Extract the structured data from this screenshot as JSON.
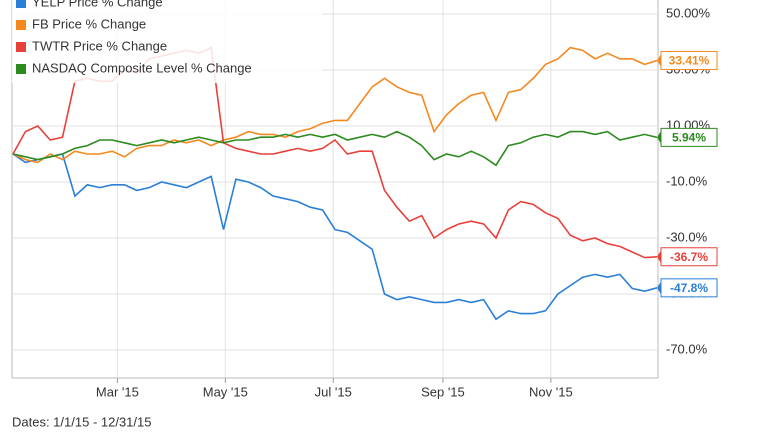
{
  "chart_data": {
    "type": "line",
    "footer": "Dates: 1/1/15 - 12/31/15",
    "x": [
      0,
      7,
      14,
      21,
      28,
      35,
      42,
      49,
      56,
      63,
      70,
      77,
      84,
      91,
      98,
      105,
      112,
      119,
      126,
      133,
      140,
      147,
      154,
      161,
      168,
      175,
      182,
      189,
      196,
      203,
      210,
      217,
      224,
      231,
      238,
      245,
      252,
      259,
      266,
      273,
      280,
      287,
      294,
      301,
      308,
      315,
      322,
      329,
      336,
      343,
      350,
      357,
      364
    ],
    "xlim": [
      0,
      364
    ],
    "xticks": [
      {
        "value": 59,
        "label": "Mar '15"
      },
      {
        "value": 120,
        "label": "May '15"
      },
      {
        "value": 181,
        "label": "Jul '15"
      },
      {
        "value": 243,
        "label": "Sep '15"
      },
      {
        "value": 304,
        "label": "Nov '15"
      }
    ],
    "ylim": [
      -80,
      55
    ],
    "yticks": [
      {
        "value": 50,
        "label": "50.00%"
      },
      {
        "value": 30,
        "label": "30.00%"
      },
      {
        "value": 10,
        "label": "10.00%"
      },
      {
        "value": -10,
        "label": "-10.0%"
      },
      {
        "value": -30,
        "label": "-30.0%"
      },
      {
        "value": -50,
        "label": "-50.0%"
      },
      {
        "value": -70,
        "label": "-70.0%"
      }
    ],
    "grid": true,
    "legend": "top-left",
    "series": [
      {
        "name": "YELP Price % Change",
        "color": "#2a7fd6",
        "values": [
          0,
          -3,
          -2,
          -1,
          0,
          -15,
          -11,
          -12,
          -11,
          -11,
          -13,
          -12,
          -10,
          -11,
          -12,
          -10,
          -8,
          -27,
          -9,
          -10,
          -12,
          -15,
          -16,
          -17,
          -19,
          -20,
          -27,
          -28,
          -31,
          -34,
          -50,
          -52,
          -51,
          -52,
          -53,
          -53,
          -52,
          -53,
          -52,
          -59,
          -56,
          -57,
          -57,
          -56,
          -50,
          -47,
          -44,
          -43,
          -44,
          -43,
          -48,
          -49,
          -47.8
        ],
        "value_labels": [
          null,
          null,
          null,
          null,
          null,
          null,
          null,
          null,
          null,
          null,
          null,
          null,
          null,
          null,
          null,
          null,
          null,
          null,
          null,
          null,
          null,
          null,
          null,
          null,
          null,
          null,
          null,
          null,
          null,
          null,
          null,
          null,
          null,
          null,
          null,
          null,
          null,
          null,
          null,
          null,
          null,
          null,
          null,
          null,
          null,
          null,
          null,
          null,
          null,
          null,
          null,
          null,
          "-47.8%"
        ]
      },
      {
        "name": "FB Price % Change",
        "color": "#f5891f",
        "values": [
          0,
          -2,
          -3,
          0,
          -2,
          1,
          0,
          0,
          1,
          -1,
          2,
          3,
          3,
          5,
          4,
          5,
          3,
          5,
          6,
          8,
          7,
          7,
          6,
          8,
          9,
          11,
          12,
          12,
          18,
          24,
          27,
          24,
          22,
          21,
          8,
          14,
          18,
          21,
          22,
          12,
          22,
          23,
          27,
          32,
          34,
          38,
          37,
          34,
          36,
          34,
          34,
          32,
          33.41
        ],
        "value_labels": [
          null,
          null,
          null,
          null,
          null,
          null,
          null,
          null,
          null,
          null,
          null,
          null,
          null,
          null,
          null,
          null,
          null,
          null,
          null,
          null,
          null,
          null,
          null,
          null,
          null,
          null,
          null,
          null,
          null,
          null,
          null,
          null,
          null,
          null,
          null,
          null,
          null,
          null,
          null,
          null,
          null,
          null,
          null,
          null,
          null,
          null,
          null,
          null,
          null,
          null,
          null,
          null,
          "33.41%"
        ]
      },
      {
        "name": "TWTR Price % Change",
        "color": "#e8413c",
        "values": [
          0,
          8,
          10,
          5,
          6,
          26,
          27,
          26,
          26,
          30,
          29,
          34,
          35,
          36,
          37,
          36,
          38,
          4,
          2,
          1,
          0,
          0,
          1,
          2,
          1,
          2,
          5,
          0,
          1,
          1,
          -13,
          -19,
          -24,
          -22,
          -30,
          -27,
          -25,
          -24,
          -25,
          -30,
          -20,
          -17,
          -18,
          -21,
          -23,
          -29,
          -31,
          -30,
          -32,
          -33,
          -35,
          -37,
          -36.7
        ],
        "value_labels": [
          null,
          null,
          null,
          null,
          null,
          null,
          null,
          null,
          null,
          null,
          null,
          null,
          null,
          null,
          null,
          null,
          null,
          null,
          null,
          null,
          null,
          null,
          null,
          null,
          null,
          null,
          null,
          null,
          null,
          null,
          null,
          null,
          null,
          null,
          null,
          null,
          null,
          null,
          null,
          null,
          null,
          null,
          null,
          null,
          null,
          null,
          null,
          null,
          null,
          null,
          null,
          null,
          "-36.7%"
        ]
      },
      {
        "name": "NASDAQ Composite Level % Change",
        "color": "#2d8a1f",
        "values": [
          0,
          -1,
          -2,
          -1,
          0,
          2,
          3,
          5,
          5,
          4,
          3,
          4,
          5,
          4,
          5,
          6,
          5,
          4,
          5,
          5,
          6,
          6,
          7,
          6,
          7,
          6,
          7,
          5,
          6,
          7,
          6,
          8,
          6,
          3,
          -2,
          0,
          -1,
          1,
          -1,
          -4,
          3,
          4,
          6,
          7,
          6,
          8,
          8,
          7,
          8,
          5,
          6,
          7,
          5.94
        ],
        "value_labels": [
          null,
          null,
          null,
          null,
          null,
          null,
          null,
          null,
          null,
          null,
          null,
          null,
          null,
          null,
          null,
          null,
          null,
          null,
          null,
          null,
          null,
          null,
          null,
          null,
          null,
          null,
          null,
          null,
          null,
          null,
          null,
          null,
          null,
          null,
          null,
          null,
          null,
          null,
          null,
          null,
          null,
          null,
          null,
          null,
          null,
          null,
          null,
          null,
          null,
          null,
          null,
          null,
          "5.94%"
        ]
      }
    ]
  }
}
